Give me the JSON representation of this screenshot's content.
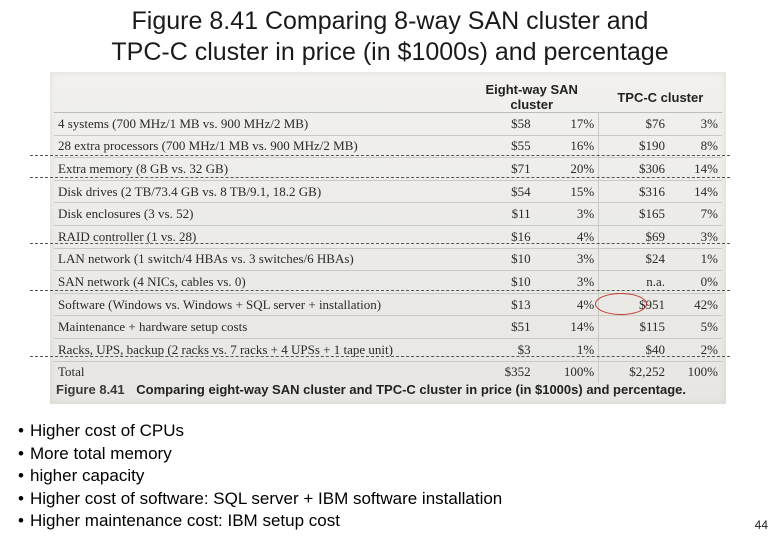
{
  "slide": {
    "title_line1": "Figure 8.41 Comparing 8-way SAN cluster and",
    "title_line2": "TPC-C cluster in price (in $1000s) and percentage",
    "page_number": "44"
  },
  "table": {
    "col_group_1": "Eight-way SAN cluster",
    "col_group_2": "TPC-C cluster",
    "rows": [
      {
        "desc": "4 systems (700 MHz/1 MB vs. 900 MHz/2 MB)",
        "san_cost": "$58",
        "san_pct": "17%",
        "tpc_cost": "$76",
        "tpc_pct": "3%"
      },
      {
        "desc": "28 extra processors (700 MHz/1 MB vs. 900 MHz/2 MB)",
        "san_cost": "$55",
        "san_pct": "16%",
        "tpc_cost": "$190",
        "tpc_pct": "8%"
      },
      {
        "desc": "Extra memory (8 GB vs. 32 GB)",
        "san_cost": "$71",
        "san_pct": "20%",
        "tpc_cost": "$306",
        "tpc_pct": "14%"
      },
      {
        "desc": "Disk drives (2 TB/73.4 GB vs. 8 TB/9.1, 18.2 GB)",
        "san_cost": "$54",
        "san_pct": "15%",
        "tpc_cost": "$316",
        "tpc_pct": "14%"
      },
      {
        "desc": "Disk enclosures (3 vs. 52)",
        "san_cost": "$11",
        "san_pct": "3%",
        "tpc_cost": "$165",
        "tpc_pct": "7%"
      },
      {
        "desc": "RAID controller (1 vs. 28)",
        "san_cost": "$16",
        "san_pct": "4%",
        "tpc_cost": "$69",
        "tpc_pct": "3%"
      },
      {
        "desc": "LAN network (1 switch/4 HBAs vs. 3 switches/6 HBAs)",
        "san_cost": "$10",
        "san_pct": "3%",
        "tpc_cost": "$24",
        "tpc_pct": "1%"
      },
      {
        "desc": "SAN network (4 NICs, cables vs. 0)",
        "san_cost": "$10",
        "san_pct": "3%",
        "tpc_cost": "n.a.",
        "tpc_pct": "0%"
      },
      {
        "desc": "Software (Windows vs. Windows + SQL server + installation)",
        "san_cost": "$13",
        "san_pct": "4%",
        "tpc_cost": "$951",
        "tpc_pct": "42%"
      },
      {
        "desc": "Maintenance + hardware setup costs",
        "san_cost": "$51",
        "san_pct": "14%",
        "tpc_cost": "$115",
        "tpc_pct": "5%"
      },
      {
        "desc": "Racks, UPS, backup (2 racks vs. 7 racks + 4 UPSs + 1 tape unit)",
        "san_cost": "$3",
        "san_pct": "1%",
        "tpc_cost": "$40",
        "tpc_pct": "2%"
      },
      {
        "desc": "Total",
        "san_cost": "$352",
        "san_pct": "100%",
        "tpc_cost": "$2,252",
        "tpc_pct": "100%"
      }
    ],
    "caption_label": "Figure 8.41",
    "caption_text": "Comparing eight-way SAN cluster and TPC-C cluster in price (in $1000s) and percentage."
  },
  "bullets": [
    "Higher cost of CPUs",
    "More total memory",
    "higher capacity",
    "Higher cost of software: SQL server + IBM software installation",
    "Higher maintenance cost: IBM setup cost"
  ],
  "colors": {
    "highlight_circle": "#c0392b",
    "scan_background": "#eceae6"
  }
}
